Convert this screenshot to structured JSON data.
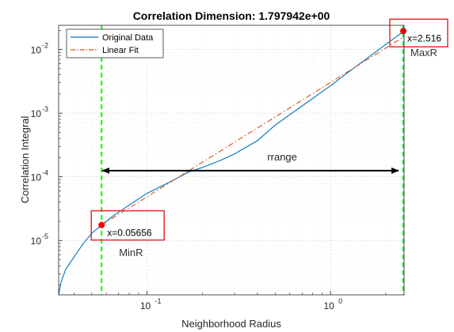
{
  "chart_data": {
    "type": "line",
    "title": "Correlation Dimension: 1.797942e+00",
    "xlabel": "Neighborhood Radius",
    "ylabel": "Correlation Integral",
    "xscale": "log",
    "yscale": "log",
    "xlim": [
      0.033,
      2.516
    ],
    "ylim": [
      1.4e-06,
      0.024
    ],
    "xticks": [
      {
        "value": 0.1,
        "base": "10",
        "exp": "-1"
      },
      {
        "value": 1,
        "base": "10",
        "exp": "0"
      }
    ],
    "yticks": [
      {
        "value": 1e-05,
        "base": "10",
        "exp": "-5"
      },
      {
        "value": 0.0001,
        "base": "10",
        "exp": "-4"
      },
      {
        "value": 0.001,
        "base": "10",
        "exp": "-3"
      },
      {
        "value": 0.01,
        "base": "10",
        "exp": "-2"
      }
    ],
    "grid": true,
    "legend_position": "top-left",
    "series": [
      {
        "name": "Original Data",
        "color": "#0072BD",
        "style": "solid",
        "x": [
          0.033,
          0.034,
          0.036,
          0.04,
          0.045,
          0.05,
          0.05656,
          0.065,
          0.08,
          0.1,
          0.13,
          0.17,
          0.2,
          0.25,
          0.3,
          0.4,
          0.5,
          0.7,
          1.0,
          1.3,
          1.7,
          2.0,
          2.516
        ],
        "y": [
          1.4e-06,
          2.2e-06,
          3.5e-06,
          5.5e-06,
          9e-06,
          1.3e-05,
          1.75e-05,
          2.4e-05,
          3.6e-05,
          5.5e-05,
          8e-05,
          0.00012,
          0.00014,
          0.00018,
          0.00023,
          0.00037,
          0.00065,
          0.0013,
          0.0027,
          0.0048,
          0.0085,
          0.012,
          0.0195
        ]
      },
      {
        "name": "Linear Fit",
        "color": "#D95319",
        "style": "dash-dot",
        "x": [
          0.05656,
          2.516
        ],
        "y": [
          1.75e-05,
          0.0159
        ]
      }
    ],
    "vertical_lines": [
      {
        "x": 0.05656,
        "color": "#00FF00",
        "style": "dashed",
        "label": "MinR"
      },
      {
        "x": 2.516,
        "color": "#00FF00",
        "style": "dashed",
        "label": "MaxR"
      }
    ],
    "markers": [
      {
        "x": 0.05656,
        "y": 1.75e-05,
        "color": "#FF0000",
        "label": "x=0.05656"
      },
      {
        "x": 2.516,
        "y": 0.0195,
        "color": "#FF0000",
        "label": "x=2.516"
      }
    ],
    "range_arrow": {
      "x_start": 0.05656,
      "x_end": 2.516,
      "y": 0.000125,
      "label": "rrange"
    }
  }
}
